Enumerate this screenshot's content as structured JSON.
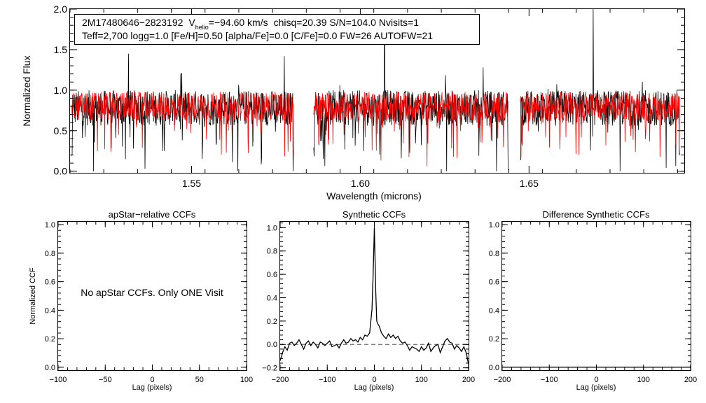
{
  "chart_data": [
    {
      "type": "line",
      "id": "spectrum",
      "title": "",
      "xlabel": "Wavelength (microns)",
      "ylabel": "Normalized Flux",
      "xlim": [
        1.514,
        1.696
      ],
      "ylim": [
        -0.02,
        2.0
      ],
      "xticks": [
        {
          "v": 1.55,
          "label": "1.55"
        },
        {
          "v": 1.6,
          "label": "1.60"
        },
        {
          "v": 1.65,
          "label": "1.65"
        }
      ],
      "yticks": [
        {
          "v": 0.0,
          "label": "0.0"
        },
        {
          "v": 0.5,
          "label": "0.5"
        },
        {
          "v": 1.0,
          "label": "1.0"
        },
        {
          "v": 1.5,
          "label": "1.5"
        },
        {
          "v": 2.0,
          "label": "2.0"
        }
      ],
      "annotation": {
        "star_id": "2M17480646−2823192",
        "v_prefix": "V",
        "v_sub": "helio",
        "v_value": "=−94.60 km/s",
        "stats": "chisq=20.39  S/N=104.0  Nvisits=1",
        "params": "Teff=2,700 logg=1.0 [Fe/H]=0.50 [alpha/Fe]=0.0 [C/Fe]=0.0 FW=26 AUTOFW=21"
      },
      "detector_ranges": [
        [
          1.5145,
          1.5802
        ],
        [
          1.5862,
          1.6439
        ],
        [
          1.6474,
          1.6946
        ]
      ],
      "series": [
        {
          "name": "observed spectrum",
          "color": "#000000",
          "continuum": 0.78,
          "scatter": 0.22
        },
        {
          "name": "synthetic model",
          "color": "#ff0000",
          "continuum": 0.8,
          "scatter": 0.18
        }
      ],
      "notable_spikes": [
        {
          "x": 1.669,
          "y": 2.0
        },
        {
          "x": 1.6072,
          "y": 1.62
        },
        {
          "x": 1.5313,
          "y": 1.45
        },
        {
          "x": 1.5775,
          "y": 1.42
        }
      ],
      "colors": {
        "observed": "#000000",
        "model": "#ff0000"
      }
    },
    {
      "type": "line",
      "id": "apstar_ccf",
      "title": "apStar−relative CCFs",
      "xlabel": "Lag (pixels)",
      "ylabel": "Normalized CCF",
      "xlim": [
        -100,
        100
      ],
      "ylim": [
        -0.02,
        1.02
      ],
      "xticks": [
        {
          "v": -100,
          "label": "−100"
        },
        {
          "v": -50,
          "label": "−50"
        },
        {
          "v": 0,
          "label": "0"
        },
        {
          "v": 50,
          "label": "50"
        },
        {
          "v": 100,
          "label": "100"
        }
      ],
      "yticks": [
        {
          "v": 0.0,
          "label": "0.0"
        },
        {
          "v": 0.2,
          "label": "0.2"
        },
        {
          "v": 0.4,
          "label": "0.4"
        },
        {
          "v": 0.6,
          "label": "0.6"
        },
        {
          "v": 0.8,
          "label": "0.8"
        },
        {
          "v": 1.0,
          "label": "1.0"
        }
      ],
      "message": "No apStar CCFs.  Only ONE Visit",
      "series": []
    },
    {
      "type": "line",
      "id": "synthetic_ccf",
      "title": "Synthetic CCFs",
      "xlabel": "Lag (pixels)",
      "ylabel": "",
      "xlim": [
        -200,
        200
      ],
      "ylim": [
        -0.22,
        1.05
      ],
      "xticks": [
        {
          "v": -200,
          "label": "−200"
        },
        {
          "v": -100,
          "label": "−100"
        },
        {
          "v": 0,
          "label": "0"
        },
        {
          "v": 100,
          "label": "100"
        },
        {
          "v": 200,
          "label": "200"
        }
      ],
      "yticks": [
        {
          "v": -0.2,
          "label": "−0.2"
        },
        {
          "v": 0.0,
          "label": "0.0"
        },
        {
          "v": 0.2,
          "label": "0.2"
        },
        {
          "v": 0.4,
          "label": "0.4"
        },
        {
          "v": 0.6,
          "label": "0.6"
        },
        {
          "v": 0.8,
          "label": "0.8"
        },
        {
          "v": 1.0,
          "label": "1.0"
        }
      ],
      "zero_line": {
        "y": 0.0,
        "style": "dashed"
      },
      "series": [
        {
          "name": "synthetic CCF",
          "color": "#000000",
          "x": [
            -200,
            -195,
            -190,
            -185,
            -180,
            -175,
            -170,
            -165,
            -160,
            -155,
            -150,
            -145,
            -140,
            -135,
            -130,
            -125,
            -120,
            -115,
            -110,
            -105,
            -100,
            -95,
            -90,
            -85,
            -80,
            -75,
            -70,
            -65,
            -60,
            -55,
            -50,
            -45,
            -40,
            -35,
            -30,
            -25,
            -20,
            -15,
            -10,
            -5,
            -3,
            0,
            3,
            5,
            8,
            10,
            15,
            20,
            25,
            30,
            35,
            40,
            45,
            50,
            55,
            60,
            65,
            70,
            75,
            80,
            85,
            90,
            95,
            100,
            105,
            110,
            115,
            120,
            125,
            130,
            135,
            140,
            145,
            150,
            155,
            160,
            165,
            170,
            175,
            180,
            185,
            190,
            195,
            200
          ],
          "y": [
            -0.14,
            -0.07,
            -0.02,
            -0.05,
            0.01,
            0.02,
            -0.01,
            0.01,
            0.04,
            0.0,
            -0.04,
            0.01,
            0.03,
            -0.01,
            0.02,
            0.0,
            -0.03,
            0.02,
            0.01,
            -0.01,
            0.01,
            0.03,
            -0.02,
            -0.01,
            0.0,
            -0.03,
            0.01,
            0.04,
            0.01,
            0.02,
            0.05,
            0.03,
            0.04,
            0.02,
            0.06,
            0.04,
            0.08,
            0.07,
            0.1,
            0.3,
            0.55,
            1.0,
            0.45,
            0.2,
            0.17,
            0.16,
            0.1,
            0.07,
            0.05,
            0.09,
            0.06,
            0.08,
            0.05,
            0.07,
            0.03,
            0.01,
            0.02,
            -0.01,
            -0.05,
            -0.02,
            -0.03,
            -0.04,
            -0.06,
            -0.02,
            -0.05,
            -0.03,
            0.01,
            -0.06,
            -0.03,
            -0.01,
            0.0,
            -0.07,
            -0.02,
            0.03,
            0.05,
            0.02,
            0.01,
            -0.04,
            -0.01,
            -0.03,
            -0.06,
            -0.02,
            -0.07,
            -0.17
          ]
        }
      ]
    },
    {
      "type": "line",
      "id": "difference_ccf",
      "title": "Difference Synthetic CCFs",
      "xlabel": "Lag (pixels)",
      "ylabel": "",
      "xlim": [
        -200,
        200
      ],
      "ylim": [
        -0.02,
        1.02
      ],
      "xticks": [
        {
          "v": -200,
          "label": "−200"
        },
        {
          "v": -100,
          "label": "−100"
        },
        {
          "v": 0,
          "label": "0"
        },
        {
          "v": 100,
          "label": "100"
        },
        {
          "v": 200,
          "label": "200"
        }
      ],
      "yticks": [
        {
          "v": 0.0,
          "label": "0.0"
        },
        {
          "v": 0.2,
          "label": "0.2"
        },
        {
          "v": 0.4,
          "label": "0.4"
        },
        {
          "v": 0.6,
          "label": "0.6"
        },
        {
          "v": 0.8,
          "label": "0.8"
        },
        {
          "v": 1.0,
          "label": "1.0"
        }
      ],
      "series": [
        {
          "name": "difference CCF",
          "color": "#000000",
          "x": [
            -200,
            200
          ],
          "y": [
            0.0,
            0.0
          ]
        }
      ]
    }
  ]
}
